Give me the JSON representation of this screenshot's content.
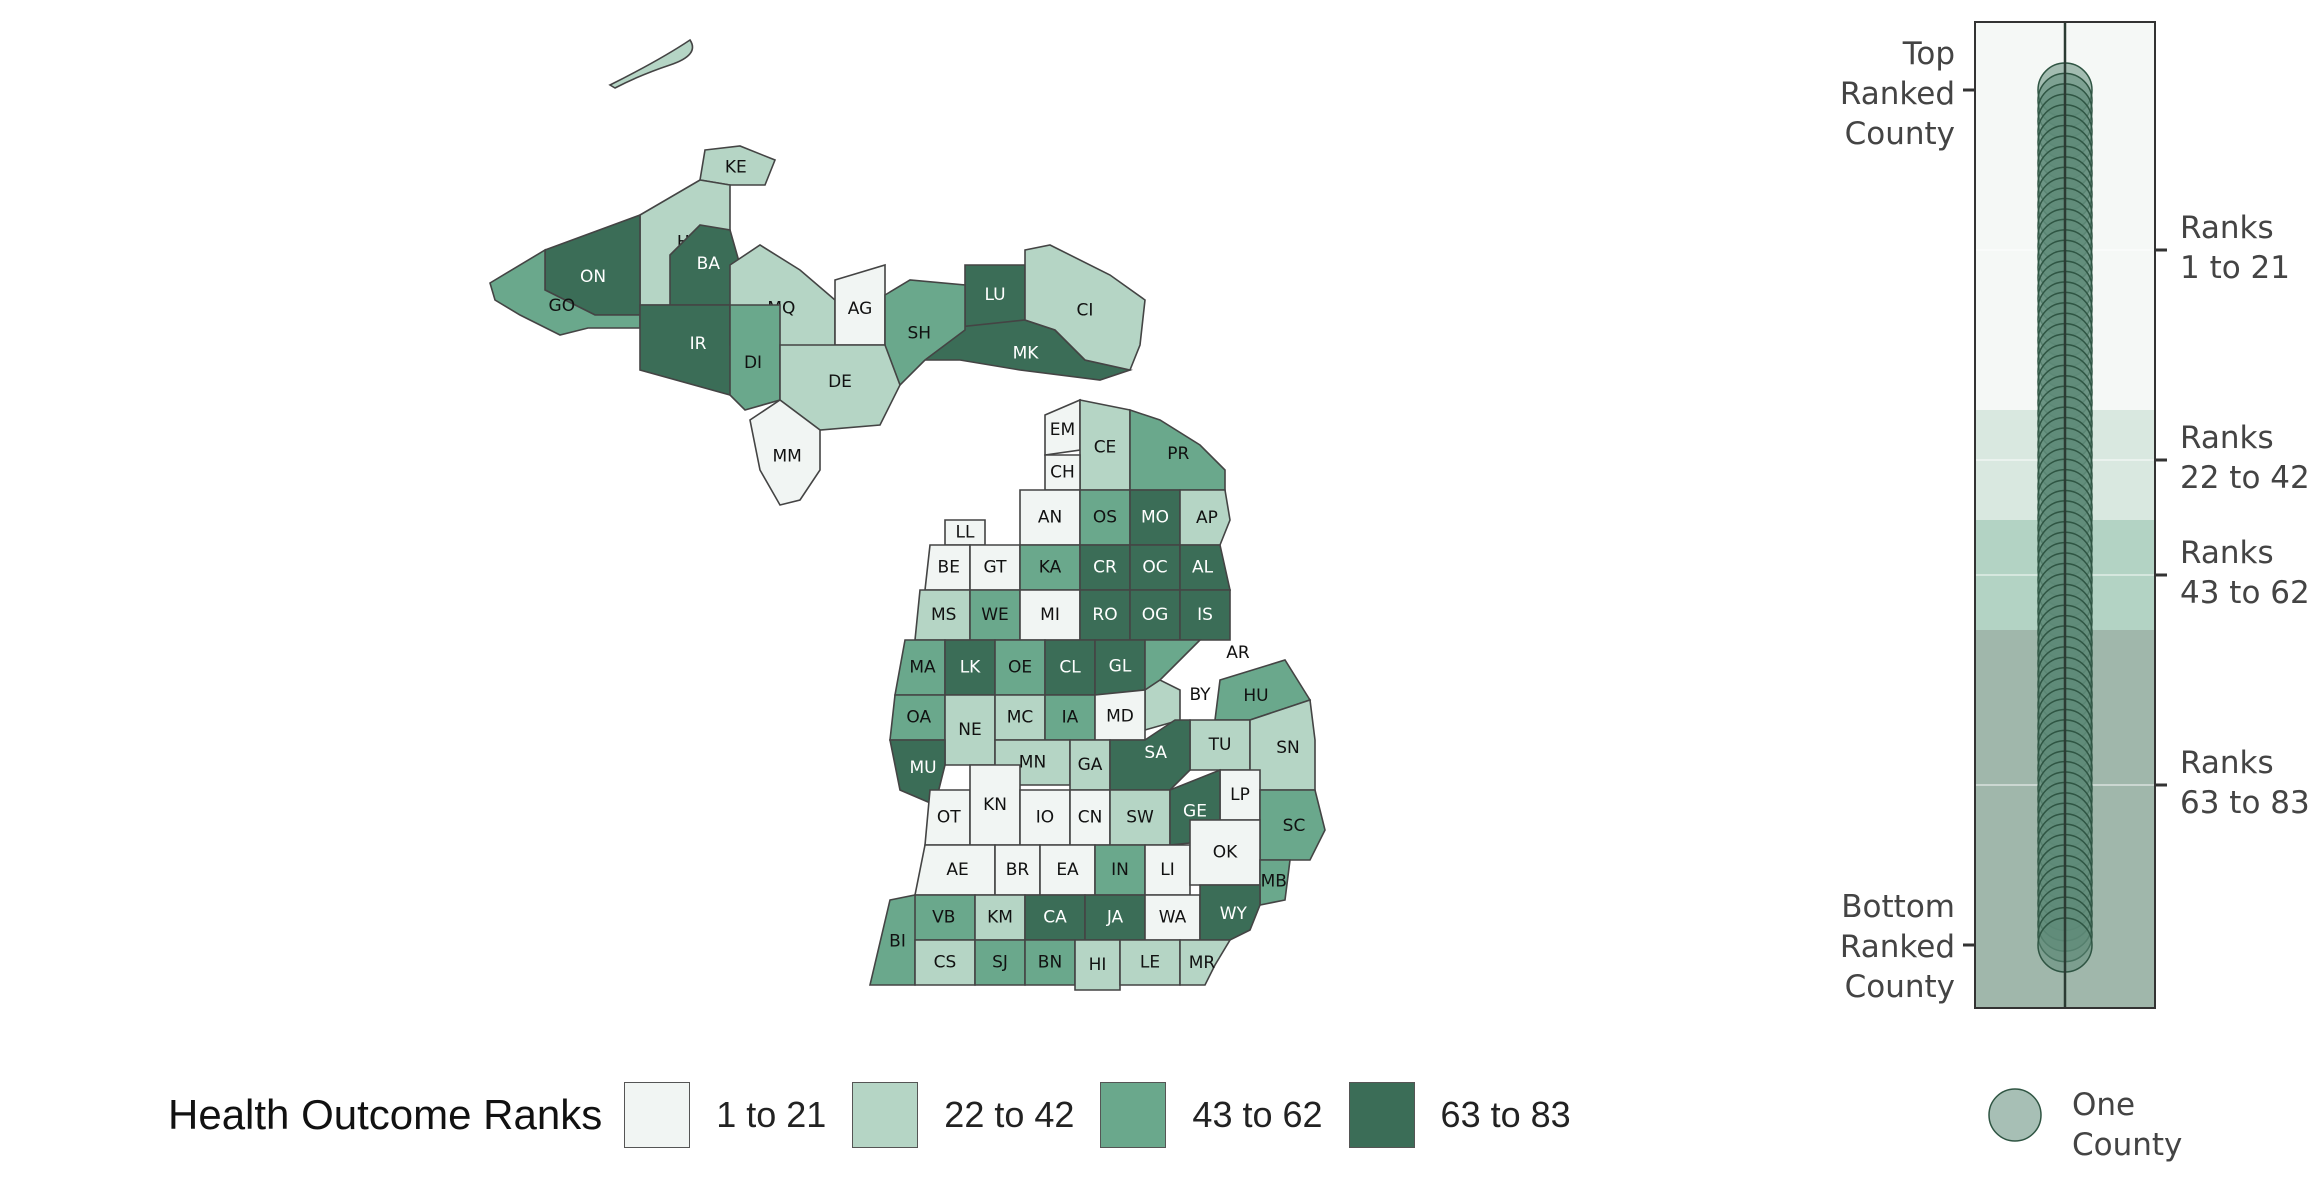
{
  "colors": {
    "bin1": "#f1f5f3",
    "bin2": "#b5d5c5",
    "bin3": "#6aa88c",
    "bin4": "#3b6d57",
    "dot_fill": "#5f8b78",
    "dot_stroke": "#2f5543",
    "strip_bg1": "#f5f8f6",
    "strip_bg2": "#d9e8e0",
    "strip_bg3": "#b3d3c4",
    "strip_bg4": "#a0b7ab"
  },
  "legend": {
    "title": "Health Outcome Ranks",
    "items": [
      {
        "label": "1 to 21",
        "color_key": "bin1"
      },
      {
        "label": "22 to 42",
        "color_key": "bin2"
      },
      {
        "label": "43 to 62",
        "color_key": "bin3"
      },
      {
        "label": "63 to 83",
        "color_key": "bin4"
      }
    ]
  },
  "side_panel": {
    "top_label": [
      "Top",
      "Ranked",
      "County"
    ],
    "bottom_label": [
      "Bottom",
      "Ranked",
      "County"
    ],
    "ranges": [
      [
        "Ranks",
        "1 to 21"
      ],
      [
        "Ranks",
        "22 to 42"
      ],
      [
        "Ranks",
        "43 to 62"
      ],
      [
        "Ranks",
        "63 to 83"
      ]
    ],
    "one_county_label": [
      "One",
      "County"
    ]
  },
  "chart_data": {
    "type": "choropleth",
    "legend_title": "Health Outcome Ranks",
    "bins": [
      "1 to 21",
      "22 to 42",
      "43 to 62",
      "63 to 83"
    ],
    "counties": [
      {
        "code": "KE",
        "bin": 2
      },
      {
        "code": "HO",
        "bin": 2
      },
      {
        "code": "ON",
        "bin": 4
      },
      {
        "code": "GO",
        "bin": 3
      },
      {
        "code": "BA",
        "bin": 4
      },
      {
        "code": "IR",
        "bin": 4
      },
      {
        "code": "MQ",
        "bin": 2
      },
      {
        "code": "DI",
        "bin": 3
      },
      {
        "code": "AG",
        "bin": 1
      },
      {
        "code": "LU",
        "bin": 4
      },
      {
        "code": "MK",
        "bin": 4
      },
      {
        "code": "CI",
        "bin": 2
      },
      {
        "code": "SH",
        "bin": 3
      },
      {
        "code": "DE",
        "bin": 2
      },
      {
        "code": "MM",
        "bin": 1
      },
      {
        "code": "EM",
        "bin": 1
      },
      {
        "code": "CE",
        "bin": 2
      },
      {
        "code": "PR",
        "bin": 3
      },
      {
        "code": "CH",
        "bin": 1
      },
      {
        "code": "AN",
        "bin": 1
      },
      {
        "code": "OS",
        "bin": 3
      },
      {
        "code": "MO",
        "bin": 4
      },
      {
        "code": "AP",
        "bin": 2
      },
      {
        "code": "LL",
        "bin": 1
      },
      {
        "code": "BE",
        "bin": 1
      },
      {
        "code": "GT",
        "bin": 1
      },
      {
        "code": "KA",
        "bin": 3
      },
      {
        "code": "CR",
        "bin": 4
      },
      {
        "code": "OC",
        "bin": 4
      },
      {
        "code": "AL",
        "bin": 4
      },
      {
        "code": "MS",
        "bin": 2
      },
      {
        "code": "WE",
        "bin": 3
      },
      {
        "code": "MI",
        "bin": 1
      },
      {
        "code": "RO",
        "bin": 4
      },
      {
        "code": "OG",
        "bin": 4
      },
      {
        "code": "IS",
        "bin": 4
      },
      {
        "code": "MA",
        "bin": 3
      },
      {
        "code": "LK",
        "bin": 4
      },
      {
        "code": "OE",
        "bin": 3
      },
      {
        "code": "CL",
        "bin": 4
      },
      {
        "code": "GL",
        "bin": 4
      },
      {
        "code": "AR",
        "bin": 3
      },
      {
        "code": "BY",
        "bin": 2
      },
      {
        "code": "HU",
        "bin": 3
      },
      {
        "code": "OA",
        "bin": 3
      },
      {
        "code": "NE",
        "bin": 2
      },
      {
        "code": "MC",
        "bin": 2
      },
      {
        "code": "IA",
        "bin": 3
      },
      {
        "code": "MD",
        "bin": 1
      },
      {
        "code": "TU",
        "bin": 2
      },
      {
        "code": "SN",
        "bin": 2
      },
      {
        "code": "MU",
        "bin": 4
      },
      {
        "code": "MN",
        "bin": 2
      },
      {
        "code": "GA",
        "bin": 2
      },
      {
        "code": "SA",
        "bin": 4
      },
      {
        "code": "LP",
        "bin": 1
      },
      {
        "code": "SC",
        "bin": 3
      },
      {
        "code": "OT",
        "bin": 1
      },
      {
        "code": "KN",
        "bin": 1
      },
      {
        "code": "IO",
        "bin": 1
      },
      {
        "code": "CN",
        "bin": 1
      },
      {
        "code": "SW",
        "bin": 2
      },
      {
        "code": "GE",
        "bin": 4
      },
      {
        "code": "AE",
        "bin": 1
      },
      {
        "code": "BR",
        "bin": 1
      },
      {
        "code": "EA",
        "bin": 1
      },
      {
        "code": "IN",
        "bin": 3
      },
      {
        "code": "LI",
        "bin": 1
      },
      {
        "code": "OK",
        "bin": 1
      },
      {
        "code": "MB",
        "bin": 3
      },
      {
        "code": "VB",
        "bin": 3
      },
      {
        "code": "KM",
        "bin": 2
      },
      {
        "code": "CA",
        "bin": 4
      },
      {
        "code": "JA",
        "bin": 4
      },
      {
        "code": "WA",
        "bin": 1
      },
      {
        "code": "WY",
        "bin": 4
      },
      {
        "code": "BI",
        "bin": 3
      },
      {
        "code": "CS",
        "bin": 2
      },
      {
        "code": "SJ",
        "bin": 3
      },
      {
        "code": "BN",
        "bin": 3
      },
      {
        "code": "HI",
        "bin": 2
      },
      {
        "code": "LE",
        "bin": 2
      },
      {
        "code": "MR",
        "bin": 2
      }
    ],
    "rank_strip": {
      "type": "strip",
      "y_axis": "rank",
      "ylim": [
        1,
        83
      ],
      "bands": [
        [
          1,
          21
        ],
        [
          22,
          42
        ],
        [
          43,
          62
        ],
        [
          63,
          83
        ]
      ],
      "ranks": [
        1,
        2,
        3,
        4,
        5,
        6,
        7,
        8,
        9,
        10,
        11,
        12,
        13,
        14,
        15,
        16,
        17,
        18,
        19,
        20,
        21,
        22,
        23,
        24,
        25,
        26,
        27,
        28,
        29,
        30,
        31,
        32,
        33,
        34,
        35,
        36,
        37,
        38,
        39,
        40,
        41,
        42,
        43,
        44,
        45,
        46,
        47,
        48,
        49,
        50,
        51,
        52,
        53,
        54,
        55,
        56,
        57,
        58,
        59,
        60,
        61,
        62,
        63,
        64,
        65,
        66,
        67,
        68,
        69,
        70,
        71,
        72,
        73,
        74,
        75,
        76,
        77,
        78,
        79,
        80,
        81,
        82,
        83
      ]
    }
  }
}
